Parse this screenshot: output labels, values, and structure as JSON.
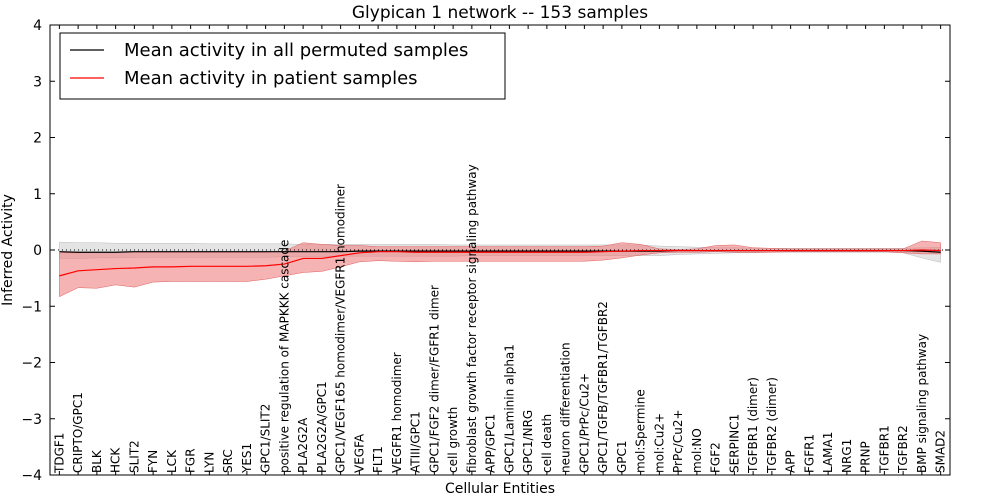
{
  "chart_data": {
    "type": "line",
    "title": "Glypican 1 network -- 153 samples",
    "xlabel": "Cellular Entities",
    "ylabel": "Inferred Activity",
    "ylim": [
      -4,
      4
    ],
    "yticks": [
      -4,
      -3,
      -2,
      -1,
      0,
      1,
      2,
      3,
      4
    ],
    "ytick_labels": [
      "−4",
      "−3",
      "−2",
      "−1",
      "0",
      "1",
      "2",
      "3",
      "4"
    ],
    "categories": [
      "TDGF1",
      "CRIPTO/GPC1",
      "BLK",
      "HCK",
      "SLIT2",
      "FYN",
      "LCK",
      "FGR",
      "LYN",
      "SRC",
      "YES1",
      "GPC1/SLIT2",
      "positive regulation of MAPKKK cascade",
      "PLA2G2A",
      "PLA2G2A/GPC1",
      "GPC1/VEGF165 homodimer/VEGFR1 homodimer",
      "VEGFA",
      "FLT1",
      "VEGFR1 homodimer",
      "ATIII/GPC1",
      "GPC1/FGF2 dimer/FGFR1 dimer",
      "cell growth",
      "fibroblast growth factor receptor signaling pathway",
      "APP/GPC1",
      "GPC1/Laminin alpha1",
      "GPC1/NRG",
      "cell death",
      "neuron differentiation",
      "GPC1/PrPc/Cu2+",
      "GPC1/TGFB/TGFBR1/TGFBR2",
      "GPC1",
      "mol:Spermine",
      "mol:Cu2+",
      "PrPc/Cu2+",
      "mol:NO",
      "FGF2",
      "SERPINC1",
      "TGFBR1 (dimer)",
      "TGFBR2 (dimer)",
      "APP",
      "FGFR1",
      "LAMA1",
      "NRG1",
      "PRNP",
      "TGFBR1",
      "TGFBR2",
      "BMP signaling pathway",
      "SMAD2"
    ],
    "series": [
      {
        "name": "Mean activity in all permuted samples",
        "color": "#000000",
        "values": [
          -0.03,
          -0.04,
          -0.04,
          -0.04,
          -0.03,
          -0.03,
          -0.03,
          -0.03,
          -0.03,
          -0.03,
          -0.03,
          -0.03,
          -0.03,
          -0.03,
          -0.03,
          -0.03,
          -0.02,
          -0.02,
          -0.02,
          -0.02,
          -0.02,
          -0.02,
          -0.02,
          -0.02,
          -0.02,
          -0.02,
          -0.02,
          -0.02,
          -0.02,
          -0.02,
          -0.02,
          -0.02,
          -0.02,
          -0.01,
          -0.01,
          -0.01,
          -0.01,
          -0.01,
          -0.01,
          -0.01,
          -0.01,
          -0.01,
          -0.01,
          -0.01,
          -0.01,
          -0.01,
          -0.02,
          -0.04
        ],
        "lower": [
          -0.15,
          -0.15,
          -0.14,
          -0.14,
          -0.13,
          -0.13,
          -0.13,
          -0.13,
          -0.13,
          -0.13,
          -0.13,
          -0.13,
          -0.12,
          -0.12,
          -0.12,
          -0.11,
          -0.11,
          -0.11,
          -0.11,
          -0.11,
          -0.11,
          -0.11,
          -0.1,
          -0.1,
          -0.1,
          -0.1,
          -0.1,
          -0.1,
          -0.1,
          -0.1,
          -0.1,
          -0.1,
          -0.1,
          -0.08,
          -0.07,
          -0.06,
          -0.05,
          -0.05,
          -0.04,
          -0.04,
          -0.04,
          -0.04,
          -0.04,
          -0.04,
          -0.04,
          -0.05,
          -0.14,
          -0.22
        ],
        "upper": [
          0.14,
          0.13,
          0.13,
          0.12,
          0.12,
          0.12,
          0.12,
          0.12,
          0.11,
          0.11,
          0.11,
          0.11,
          0.11,
          0.1,
          0.1,
          0.1,
          0.1,
          0.1,
          0.1,
          0.1,
          0.1,
          0.09,
          0.09,
          0.09,
          0.09,
          0.09,
          0.09,
          0.09,
          0.09,
          0.09,
          0.09,
          0.09,
          0.07,
          0.06,
          0.05,
          0.04,
          0.04,
          0.03,
          0.03,
          0.03,
          0.03,
          0.03,
          0.03,
          0.03,
          0.03,
          0.03,
          0.04,
          0.05
        ]
      },
      {
        "name": "Mean activity in patient samples",
        "color": "#ff0000",
        "values": [
          -0.46,
          -0.37,
          -0.35,
          -0.33,
          -0.32,
          -0.3,
          -0.3,
          -0.29,
          -0.29,
          -0.29,
          -0.29,
          -0.28,
          -0.25,
          -0.15,
          -0.15,
          -0.1,
          -0.05,
          -0.03,
          -0.03,
          -0.04,
          -0.04,
          -0.04,
          -0.04,
          -0.04,
          -0.04,
          -0.04,
          -0.04,
          -0.04,
          -0.04,
          -0.03,
          -0.02,
          -0.01,
          -0.01,
          -0.01,
          -0.01,
          -0.01,
          -0.01,
          -0.01,
          -0.01,
          -0.01,
          -0.01,
          -0.01,
          -0.01,
          -0.01,
          -0.01,
          -0.01,
          0.0,
          -0.01
        ],
        "lower": [
          -0.83,
          -0.67,
          -0.68,
          -0.62,
          -0.66,
          -0.57,
          -0.56,
          -0.56,
          -0.56,
          -0.56,
          -0.56,
          -0.52,
          -0.46,
          -0.4,
          -0.38,
          -0.3,
          -0.21,
          -0.19,
          -0.2,
          -0.21,
          -0.2,
          -0.2,
          -0.2,
          -0.2,
          -0.2,
          -0.2,
          -0.2,
          -0.2,
          -0.2,
          -0.18,
          -0.14,
          -0.09,
          -0.05,
          -0.04,
          -0.04,
          -0.03,
          -0.04,
          -0.04,
          -0.04,
          -0.03,
          -0.03,
          -0.03,
          -0.03,
          -0.03,
          -0.03,
          -0.05,
          -0.07,
          -0.07
        ],
        "upper": [
          -0.05,
          -0.05,
          -0.04,
          -0.04,
          -0.04,
          -0.04,
          -0.04,
          -0.04,
          -0.04,
          -0.04,
          -0.04,
          -0.04,
          -0.02,
          0.13,
          0.1,
          0.08,
          0.08,
          0.06,
          0.06,
          0.06,
          0.06,
          0.06,
          0.06,
          0.06,
          0.06,
          0.06,
          0.06,
          0.06,
          0.06,
          0.07,
          0.13,
          0.1,
          0.02,
          0.01,
          0.02,
          0.08,
          0.09,
          0.04,
          0.03,
          0.02,
          0.02,
          0.02,
          0.02,
          0.02,
          0.02,
          0.02,
          0.16,
          0.13
        ]
      }
    ],
    "reference_line": {
      "value": 0,
      "style": "dotted",
      "color": "#000000"
    },
    "band_colors": {
      "permuted": "#d9d9d9",
      "patient": "#f08080"
    },
    "legend": {
      "placement": "top-left",
      "entries": [
        "Mean activity in all permuted samples",
        "Mean activity in patient samples"
      ]
    }
  }
}
